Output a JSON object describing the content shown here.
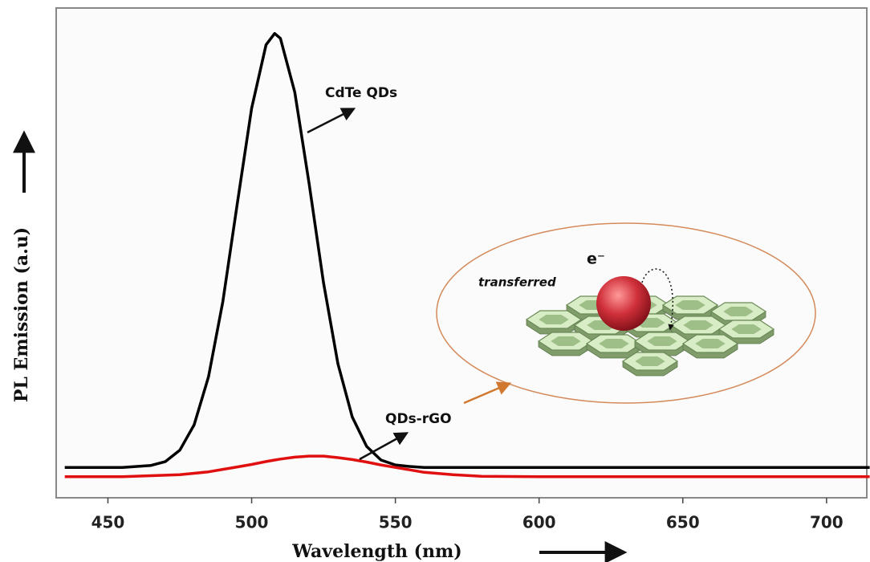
{
  "chart_data": {
    "type": "line",
    "xlabel": "Wavelength (nm)",
    "ylabel": "PL Emission (a.u)",
    "annotations": [
      "CdTe QDs",
      "QDs-rGO",
      "e⁻",
      "transferred"
    ],
    "x": [
      435,
      445,
      455,
      465,
      470,
      475,
      480,
      485,
      490,
      495,
      500,
      505,
      508,
      510,
      515,
      520,
      525,
      530,
      535,
      540,
      545,
      550,
      555,
      560,
      570,
      580,
      600,
      620,
      650,
      680,
      715
    ],
    "series": [
      {
        "name": "CdTe QDs",
        "color": "#000000",
        "values": [
          6.2,
          6.2,
          6.2,
          6.6,
          7.4,
          9.7,
          14.9,
          24.7,
          40.1,
          60.0,
          79.5,
          92.5,
          94.8,
          93.8,
          82.8,
          64.1,
          43.9,
          27.4,
          16.5,
          10.5,
          7.7,
          6.7,
          6.4,
          6.2,
          6.2,
          6.2,
          6.2,
          6.2,
          6.2,
          6.2,
          6.2
        ]
      },
      {
        "name": "QDs-rGO",
        "color": "#e01010",
        "values": [
          4.3,
          4.3,
          4.3,
          4.5,
          4.6,
          4.7,
          5.0,
          5.3,
          5.8,
          6.3,
          6.8,
          7.4,
          7.7,
          7.9,
          8.3,
          8.5,
          8.5,
          8.2,
          7.8,
          7.3,
          6.7,
          6.2,
          5.7,
          5.2,
          4.7,
          4.4,
          4.3,
          4.3,
          4.3,
          4.3,
          4.3
        ]
      }
    ],
    "xlim": [
      432,
      714
    ],
    "ylim": [
      0,
      100
    ],
    "xticks": [
      450,
      500,
      550,
      600,
      650,
      700
    ]
  }
}
